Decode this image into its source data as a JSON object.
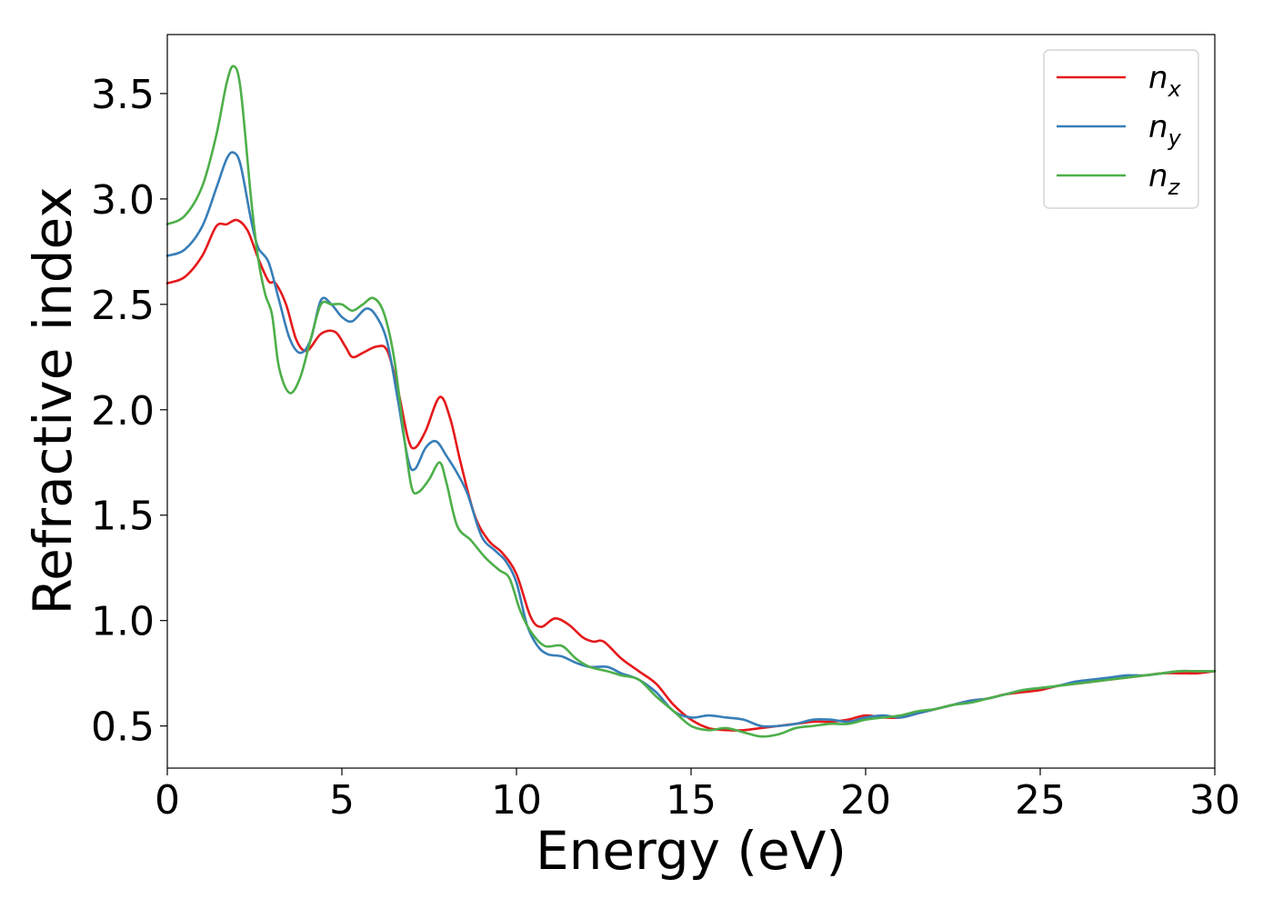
{
  "chart_data": {
    "type": "line",
    "title": "",
    "xlabel": "Energy (eV)",
    "ylabel": "Refractive index",
    "xlim": [
      0,
      30
    ],
    "ylim": [
      0.3,
      3.78
    ],
    "xticks": [
      0,
      5,
      10,
      15,
      20,
      25,
      30
    ],
    "xtick_labels": [
      "0",
      "5",
      "10",
      "15",
      "20",
      "25",
      "30"
    ],
    "yticks": [
      0.5,
      1.0,
      1.5,
      2.0,
      2.5,
      3.0,
      3.5
    ],
    "ytick_labels": [
      "0.5",
      "1.0",
      "1.5",
      "2.0",
      "2.5",
      "3.0",
      "3.5"
    ],
    "grid": false,
    "legend_position": "top-right",
    "series": [
      {
        "name": "n",
        "subscript": "x",
        "color": "#e41a1c",
        "points": [
          [
            0,
            2.6
          ],
          [
            0.5,
            2.63
          ],
          [
            1.0,
            2.73
          ],
          [
            1.4,
            2.87
          ],
          [
            1.7,
            2.88
          ],
          [
            2.0,
            2.9
          ],
          [
            2.3,
            2.85
          ],
          [
            2.6,
            2.72
          ],
          [
            2.9,
            2.61
          ],
          [
            3.1,
            2.6
          ],
          [
            3.4,
            2.5
          ],
          [
            3.7,
            2.33
          ],
          [
            4.0,
            2.28
          ],
          [
            4.4,
            2.36
          ],
          [
            4.8,
            2.37
          ],
          [
            5.1,
            2.3
          ],
          [
            5.3,
            2.25
          ],
          [
            5.6,
            2.27
          ],
          [
            6.0,
            2.3
          ],
          [
            6.3,
            2.28
          ],
          [
            6.6,
            2.1
          ],
          [
            6.9,
            1.86
          ],
          [
            7.1,
            1.82
          ],
          [
            7.4,
            1.9
          ],
          [
            7.8,
            2.06
          ],
          [
            8.1,
            1.96
          ],
          [
            8.4,
            1.75
          ],
          [
            8.8,
            1.5
          ],
          [
            9.2,
            1.38
          ],
          [
            9.6,
            1.32
          ],
          [
            10.0,
            1.22
          ],
          [
            10.4,
            1.02
          ],
          [
            10.7,
            0.97
          ],
          [
            11.1,
            1.01
          ],
          [
            11.5,
            0.98
          ],
          [
            11.9,
            0.92
          ],
          [
            12.2,
            0.9
          ],
          [
            12.5,
            0.9
          ],
          [
            13.0,
            0.82
          ],
          [
            13.5,
            0.76
          ],
          [
            14.0,
            0.7
          ],
          [
            14.5,
            0.6
          ],
          [
            15.0,
            0.53
          ],
          [
            15.5,
            0.49
          ],
          [
            16.0,
            0.48
          ],
          [
            16.5,
            0.48
          ],
          [
            17.0,
            0.49
          ],
          [
            17.5,
            0.5
          ],
          [
            18.0,
            0.51
          ],
          [
            18.5,
            0.52
          ],
          [
            19.0,
            0.52
          ],
          [
            19.5,
            0.53
          ],
          [
            20.0,
            0.55
          ],
          [
            20.5,
            0.54
          ],
          [
            21.0,
            0.54
          ],
          [
            21.5,
            0.56
          ],
          [
            22.0,
            0.58
          ],
          [
            22.5,
            0.6
          ],
          [
            23.0,
            0.62
          ],
          [
            23.5,
            0.63
          ],
          [
            24.0,
            0.65
          ],
          [
            24.5,
            0.66
          ],
          [
            25.0,
            0.67
          ],
          [
            25.5,
            0.69
          ],
          [
            26.0,
            0.7
          ],
          [
            26.5,
            0.71
          ],
          [
            27.0,
            0.72
          ],
          [
            27.5,
            0.73
          ],
          [
            28.0,
            0.74
          ],
          [
            28.5,
            0.75
          ],
          [
            29.0,
            0.75
          ],
          [
            29.5,
            0.75
          ],
          [
            30.0,
            0.76
          ]
        ]
      },
      {
        "name": "n",
        "subscript": "y",
        "color": "#377eb8",
        "points": [
          [
            0,
            2.73
          ],
          [
            0.5,
            2.76
          ],
          [
            1.0,
            2.87
          ],
          [
            1.4,
            3.05
          ],
          [
            1.7,
            3.19
          ],
          [
            1.9,
            3.22
          ],
          [
            2.1,
            3.16
          ],
          [
            2.4,
            2.9
          ],
          [
            2.6,
            2.77
          ],
          [
            2.9,
            2.7
          ],
          [
            3.2,
            2.52
          ],
          [
            3.5,
            2.34
          ],
          [
            3.8,
            2.27
          ],
          [
            4.1,
            2.33
          ],
          [
            4.4,
            2.52
          ],
          [
            4.7,
            2.5
          ],
          [
            5.0,
            2.44
          ],
          [
            5.3,
            2.42
          ],
          [
            5.7,
            2.48
          ],
          [
            6.0,
            2.44
          ],
          [
            6.3,
            2.32
          ],
          [
            6.6,
            2.05
          ],
          [
            6.9,
            1.76
          ],
          [
            7.1,
            1.72
          ],
          [
            7.4,
            1.82
          ],
          [
            7.7,
            1.85
          ],
          [
            8.0,
            1.78
          ],
          [
            8.3,
            1.7
          ],
          [
            8.6,
            1.6
          ],
          [
            9.0,
            1.4
          ],
          [
            9.4,
            1.33
          ],
          [
            9.7,
            1.28
          ],
          [
            10.0,
            1.18
          ],
          [
            10.3,
            0.98
          ],
          [
            10.6,
            0.88
          ],
          [
            10.9,
            0.84
          ],
          [
            11.3,
            0.83
          ],
          [
            11.7,
            0.8
          ],
          [
            12.1,
            0.78
          ],
          [
            12.6,
            0.78
          ],
          [
            13.0,
            0.75
          ],
          [
            13.5,
            0.72
          ],
          [
            14.0,
            0.66
          ],
          [
            14.5,
            0.57
          ],
          [
            15.0,
            0.54
          ],
          [
            15.5,
            0.55
          ],
          [
            16.0,
            0.54
          ],
          [
            16.5,
            0.53
          ],
          [
            17.0,
            0.5
          ],
          [
            17.5,
            0.5
          ],
          [
            18.0,
            0.51
          ],
          [
            18.5,
            0.53
          ],
          [
            19.0,
            0.53
          ],
          [
            19.5,
            0.52
          ],
          [
            20.0,
            0.54
          ],
          [
            20.5,
            0.55
          ],
          [
            21.0,
            0.54
          ],
          [
            21.5,
            0.56
          ],
          [
            22.0,
            0.58
          ],
          [
            22.5,
            0.6
          ],
          [
            23.0,
            0.62
          ],
          [
            23.5,
            0.63
          ],
          [
            24.0,
            0.65
          ],
          [
            24.5,
            0.67
          ],
          [
            25.0,
            0.68
          ],
          [
            25.5,
            0.69
          ],
          [
            26.0,
            0.71
          ],
          [
            26.5,
            0.72
          ],
          [
            27.0,
            0.73
          ],
          [
            27.5,
            0.74
          ],
          [
            28.0,
            0.74
          ],
          [
            28.5,
            0.75
          ],
          [
            29.0,
            0.76
          ],
          [
            29.5,
            0.76
          ],
          [
            30.0,
            0.76
          ]
        ]
      },
      {
        "name": "n",
        "subscript": "z",
        "color": "#4daf4a",
        "points": [
          [
            0,
            2.88
          ],
          [
            0.5,
            2.92
          ],
          [
            1.0,
            3.06
          ],
          [
            1.4,
            3.3
          ],
          [
            1.7,
            3.55
          ],
          [
            1.9,
            3.63
          ],
          [
            2.1,
            3.52
          ],
          [
            2.4,
            3.0
          ],
          [
            2.6,
            2.72
          ],
          [
            2.8,
            2.55
          ],
          [
            3.0,
            2.45
          ],
          [
            3.2,
            2.2
          ],
          [
            3.5,
            2.08
          ],
          [
            3.8,
            2.15
          ],
          [
            4.1,
            2.33
          ],
          [
            4.4,
            2.5
          ],
          [
            4.7,
            2.5
          ],
          [
            5.0,
            2.5
          ],
          [
            5.3,
            2.47
          ],
          [
            5.6,
            2.5
          ],
          [
            5.9,
            2.53
          ],
          [
            6.2,
            2.46
          ],
          [
            6.5,
            2.24
          ],
          [
            6.8,
            1.85
          ],
          [
            7.0,
            1.63
          ],
          [
            7.2,
            1.61
          ],
          [
            7.5,
            1.67
          ],
          [
            7.8,
            1.75
          ],
          [
            8.0,
            1.65
          ],
          [
            8.3,
            1.45
          ],
          [
            8.7,
            1.38
          ],
          [
            9.1,
            1.3
          ],
          [
            9.5,
            1.24
          ],
          [
            9.8,
            1.2
          ],
          [
            10.1,
            1.05
          ],
          [
            10.4,
            0.95
          ],
          [
            10.8,
            0.88
          ],
          [
            11.3,
            0.88
          ],
          [
            11.7,
            0.82
          ],
          [
            12.1,
            0.78
          ],
          [
            12.6,
            0.76
          ],
          [
            13.0,
            0.74
          ],
          [
            13.5,
            0.72
          ],
          [
            14.0,
            0.64
          ],
          [
            14.5,
            0.57
          ],
          [
            15.0,
            0.5
          ],
          [
            15.5,
            0.48
          ],
          [
            16.0,
            0.49
          ],
          [
            16.5,
            0.47
          ],
          [
            17.0,
            0.45
          ],
          [
            17.5,
            0.46
          ],
          [
            18.0,
            0.49
          ],
          [
            18.5,
            0.5
          ],
          [
            19.0,
            0.51
          ],
          [
            19.5,
            0.51
          ],
          [
            20.0,
            0.53
          ],
          [
            20.5,
            0.54
          ],
          [
            21.0,
            0.55
          ],
          [
            21.5,
            0.57
          ],
          [
            22.0,
            0.58
          ],
          [
            22.5,
            0.6
          ],
          [
            23.0,
            0.61
          ],
          [
            23.5,
            0.63
          ],
          [
            24.0,
            0.65
          ],
          [
            24.5,
            0.67
          ],
          [
            25.0,
            0.68
          ],
          [
            25.5,
            0.69
          ],
          [
            26.0,
            0.7
          ],
          [
            26.5,
            0.71
          ],
          [
            27.0,
            0.72
          ],
          [
            27.5,
            0.73
          ],
          [
            28.0,
            0.74
          ],
          [
            28.5,
            0.75
          ],
          [
            29.0,
            0.76
          ],
          [
            29.5,
            0.76
          ],
          [
            30.0,
            0.76
          ]
        ]
      }
    ]
  }
}
